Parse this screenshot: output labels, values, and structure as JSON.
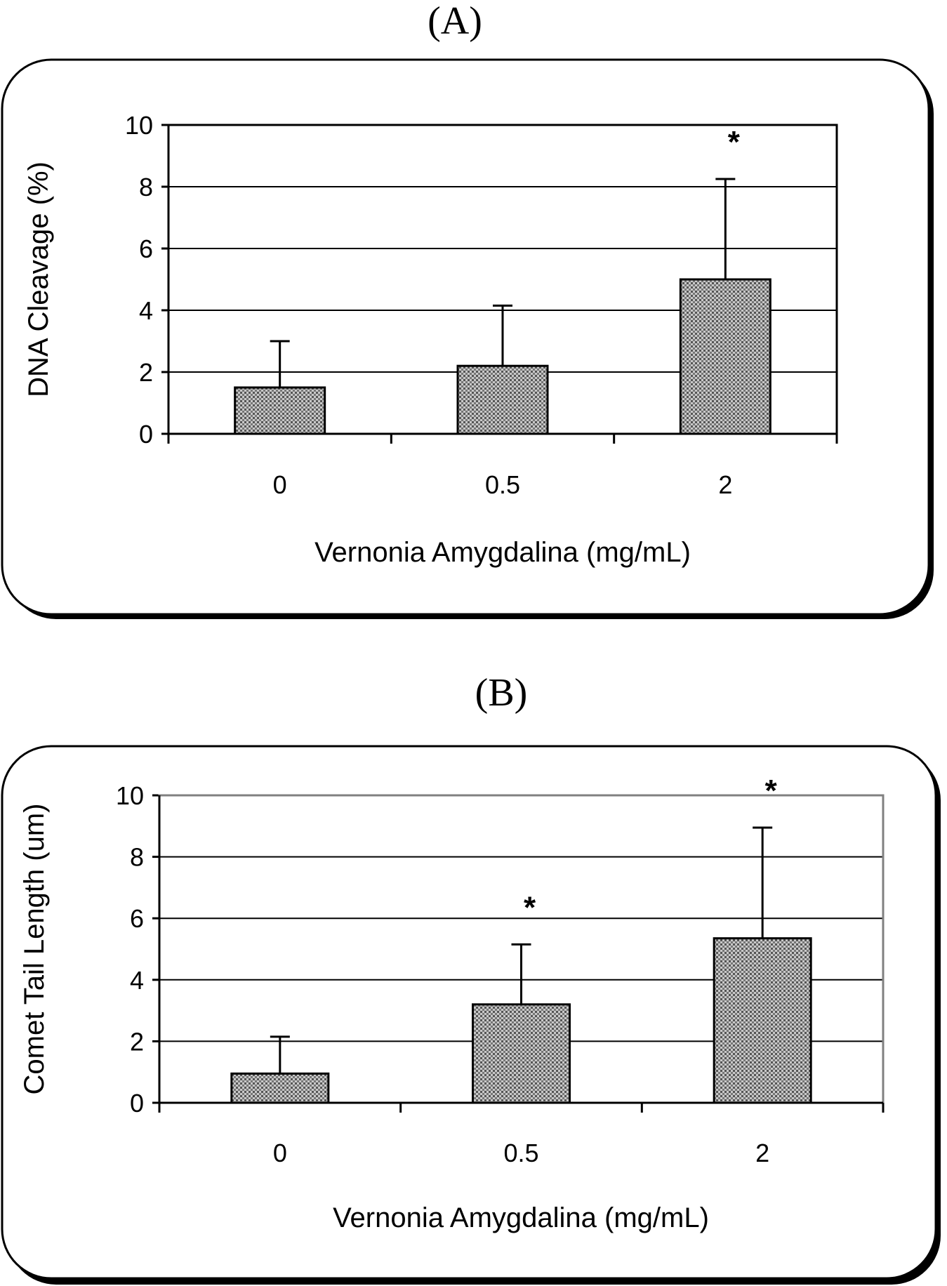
{
  "chart_data": [
    {
      "panel": "(A)",
      "type": "bar",
      "categories": [
        "0",
        "0.5",
        "2"
      ],
      "values": [
        1.5,
        2.2,
        5.0
      ],
      "errors": [
        1.5,
        1.95,
        3.25
      ],
      "significance": [
        "",
        "",
        "*"
      ],
      "xlabel": "Vernonia Amygdalina (mg/mL)",
      "ylabel": "DNA Cleavage (%)",
      "ylim": [
        0,
        10
      ],
      "yticks": [
        0,
        2,
        4,
        6,
        8,
        10
      ],
      "grid": true,
      "colors": {
        "bar_fill": "#9a9a9a",
        "frame": "#000000"
      }
    },
    {
      "panel": "(B)",
      "type": "bar",
      "categories": [
        "0",
        "0.5",
        "2"
      ],
      "values": [
        0.95,
        3.2,
        5.35
      ],
      "errors": [
        1.2,
        1.95,
        3.6
      ],
      "significance": [
        "",
        "*",
        "*"
      ],
      "xlabel": "Vernonia Amygdalina (mg/mL)",
      "ylabel": "Comet Tail Length (um)",
      "ylim": [
        0,
        10
      ],
      "yticks": [
        0,
        2,
        4,
        6,
        8,
        10
      ],
      "grid": true,
      "colors": {
        "bar_fill": "#9a9a9a",
        "frame": "#808080"
      }
    }
  ]
}
